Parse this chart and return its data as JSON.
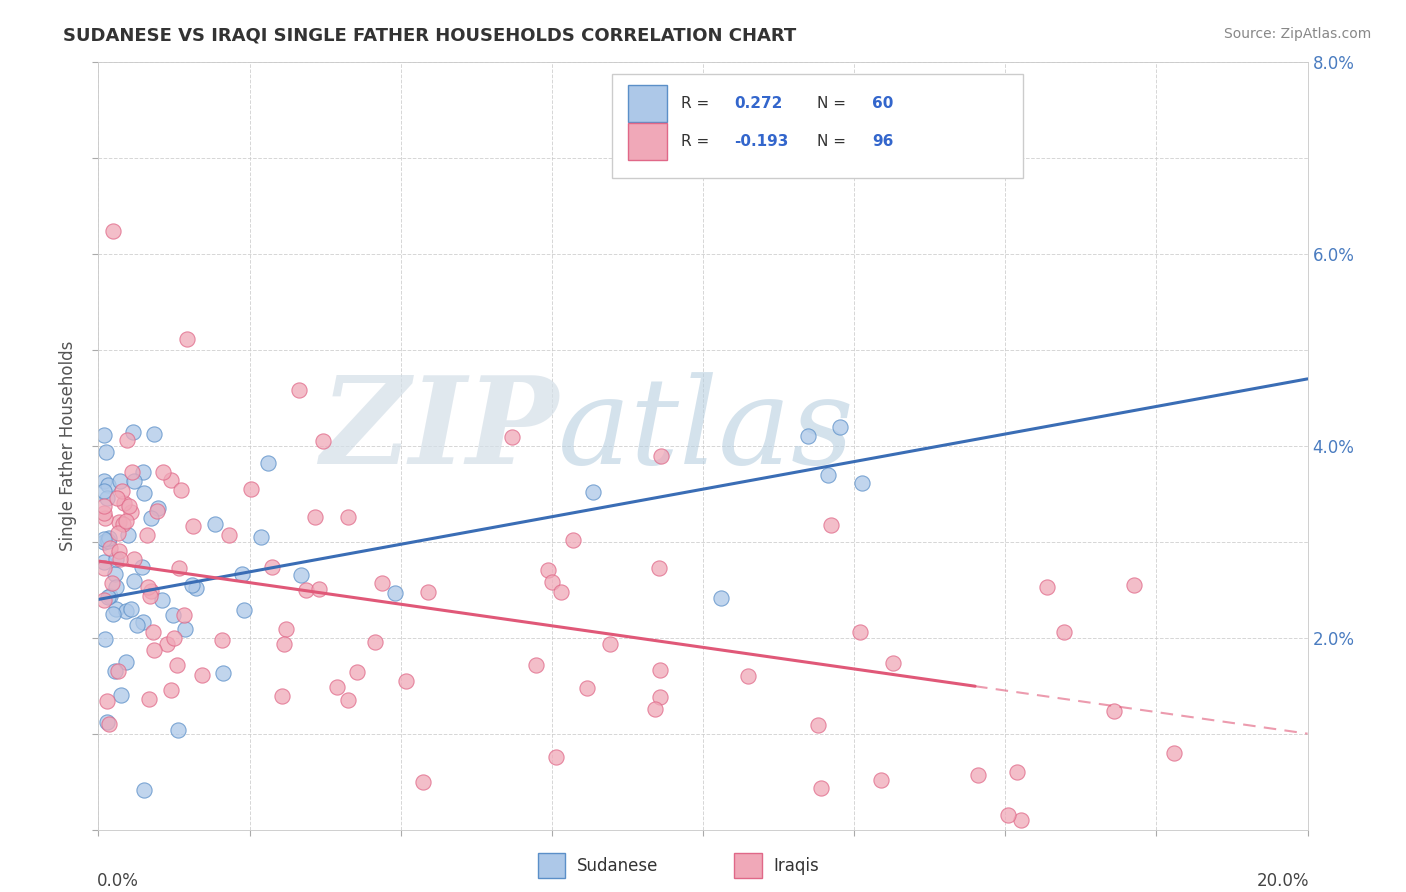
{
  "title": "SUDANESE VS IRAQI SINGLE FATHER HOUSEHOLDS CORRELATION CHART",
  "source_text": "Source: ZipAtlas.com",
  "ylabel": "Single Father Households",
  "xlim": [
    0.0,
    0.2
  ],
  "ylim": [
    0.0,
    0.08
  ],
  "x_ticks": [
    0.0,
    0.025,
    0.05,
    0.075,
    0.1,
    0.125,
    0.15,
    0.175,
    0.2
  ],
  "y_ticks": [
    0.0,
    0.01,
    0.02,
    0.03,
    0.04,
    0.05,
    0.06,
    0.07,
    0.08
  ],
  "y_tick_labels_right": [
    "",
    "",
    "2.0%",
    "",
    "4.0%",
    "",
    "6.0%",
    "",
    "8.0%"
  ],
  "R_sudanese": 0.272,
  "N_sudanese": 60,
  "R_iraqi": -0.193,
  "N_iraqi": 96,
  "color_sudanese_fill": "#adc8e8",
  "color_sudanese_edge": "#5b8fc8",
  "color_iraqi_fill": "#f0a8b8",
  "color_iraqi_edge": "#e06888",
  "color_line_sudanese": "#3a6db5",
  "color_line_iraqi": "#e05878",
  "watermark_zip": "ZIP",
  "watermark_atlas": "atlas",
  "watermark_color_zip": "#d0dce8",
  "watermark_color_atlas": "#b8cce0",
  "legend_text_color": "#3366cc",
  "legend_R_label_color": "#333333",
  "background_color": "#ffffff",
  "grid_color": "#cccccc",
  "title_color": "#333333",
  "source_color": "#888888",
  "ylabel_color": "#555555"
}
